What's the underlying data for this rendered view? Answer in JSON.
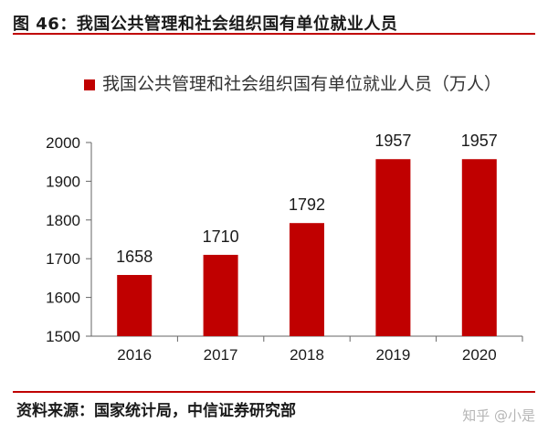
{
  "figure": {
    "title": "图 46：我国公共管理和社会组织国有单位就业人员",
    "source": "资料来源：国家统计局，中信证券研究部",
    "watermark": "知乎 @小是"
  },
  "colors": {
    "bar": "#c00000",
    "rule": "#c00000",
    "text": "#1a1a1a"
  },
  "chart_data": {
    "type": "bar",
    "categories": [
      "2016",
      "2017",
      "2018",
      "2019",
      "2020"
    ],
    "series": [
      {
        "name": "我国公共管理和社会组织国有单位就业人员（万人）",
        "values": [
          1658,
          1710,
          1792,
          1957,
          1957
        ]
      }
    ],
    "data_labels": [
      "1658",
      "1710",
      "1792",
      "1957",
      "1957"
    ],
    "yticks": [
      1500,
      1600,
      1700,
      1800,
      1900,
      2000
    ],
    "ylim": [
      1500,
      2000
    ],
    "legend": "top",
    "grid": false
  }
}
